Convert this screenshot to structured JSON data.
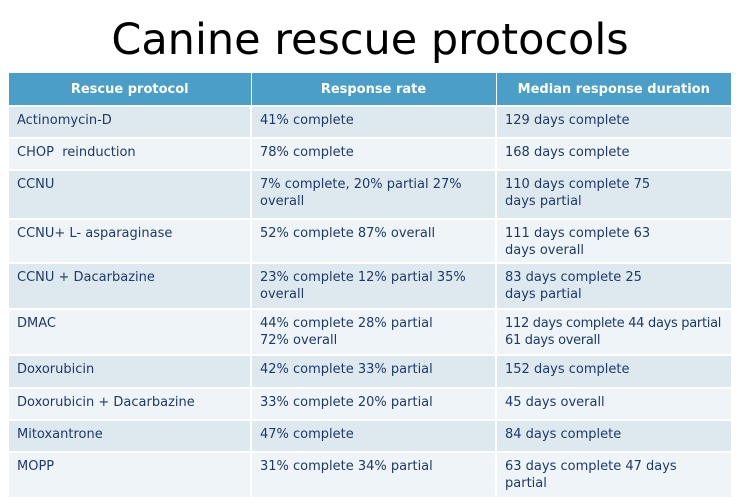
{
  "slide": {
    "title": "Canine rescue protocols"
  },
  "table": {
    "headers": [
      "Rescue protocol",
      "Response rate",
      "Median response duration"
    ],
    "rows": [
      {
        "protocol": "Actinomycin-D",
        "response_rate": "41% complete",
        "duration": "129 days complete"
      },
      {
        "protocol": "CHOP  reinduction",
        "response_rate": "78% complete",
        "duration": "168 days complete"
      },
      {
        "protocol": "CCNU",
        "response_rate": "7% complete, 20% partial 27% overall",
        "duration": "110 days complete 75 days partial"
      },
      {
        "protocol": "CCNU+ L- asparaginase",
        "response_rate": "52% complete 87% overall",
        "duration": "111 days complete 63 days overall"
      },
      {
        "protocol": "CCNU + Dacarbazine",
        "response_rate": "23% complete 12% partial 35% overall",
        "duration": "83 days complete 25 days partial"
      },
      {
        "protocol": "DMAC",
        "response_rate": "44% complete 28% partial 72% overall",
        "duration": "112 days complete 44 days partial 61 days overall"
      },
      {
        "protocol": "Doxorubicin",
        "response_rate": "42% complete 33% partial",
        "duration": "152 days complete"
      },
      {
        "protocol": "Doxorubicin + Dacarbazine",
        "response_rate": "33% complete 20% partial",
        "duration": "45 days overall"
      },
      {
        "protocol": "Mitoxantrone",
        "response_rate": "47% complete",
        "duration": "84 days complete"
      },
      {
        "protocol": "MOPP",
        "response_rate": "31% complete 34% partial",
        "duration": "63 days complete 47 days partial"
      }
    ]
  },
  "colors": {
    "header_bg": "#4a9ec7",
    "header_text": "#ffffff",
    "row_odd_bg": "#dde9ef",
    "row_even_bg": "#eef4f7",
    "cell_text": "#1e3a6a"
  }
}
